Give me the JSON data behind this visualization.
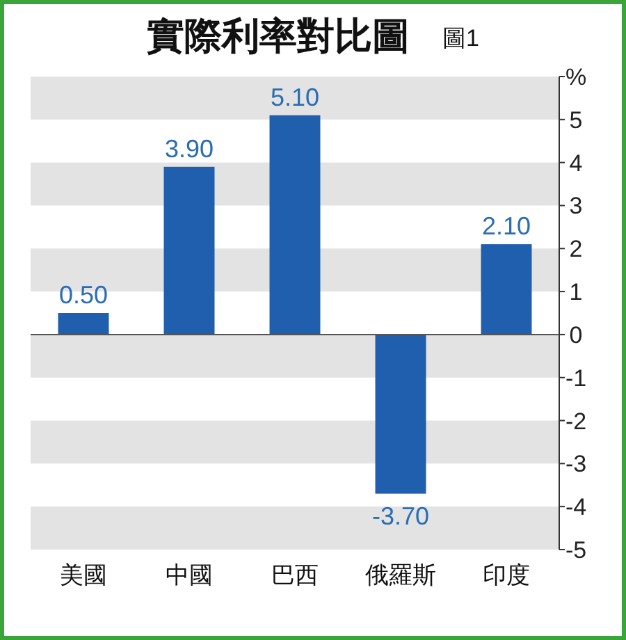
{
  "chart_data": {
    "type": "bar",
    "title": "實際利率對比圖",
    "subtitle": "圖1",
    "categories": [
      "美國",
      "中國",
      "巴西",
      "俄羅斯",
      "印度"
    ],
    "values": [
      0.5,
      3.9,
      5.1,
      -3.7,
      2.1
    ],
    "value_labels": [
      "0.50",
      "3.90",
      "5.10",
      "-3.70",
      "2.10"
    ],
    "color": "#1f5fad",
    "ylim": [
      -5,
      6
    ],
    "yticks": [
      -5,
      -4,
      -3,
      -2,
      -1,
      0,
      1,
      2,
      3,
      4,
      5,
      {
        "value": 6,
        "label": "%"
      }
    ],
    "grid": "y"
  }
}
